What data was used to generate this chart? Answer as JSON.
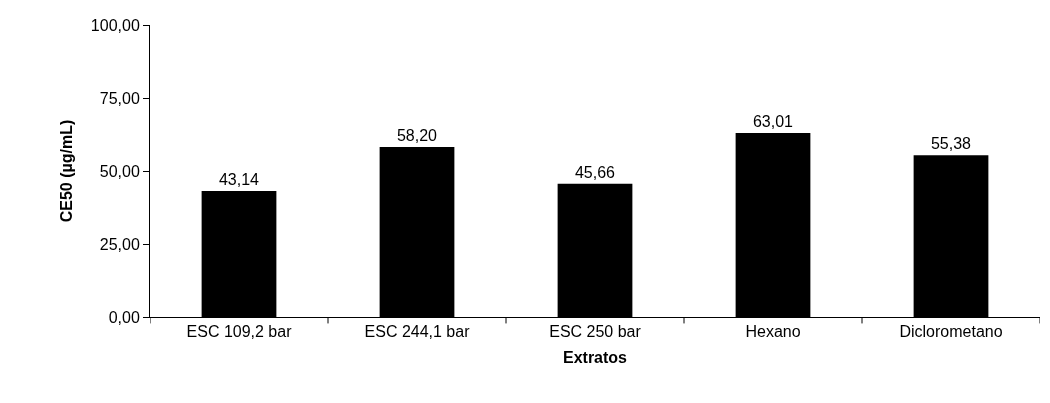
{
  "chart_data": {
    "type": "bar",
    "xlabel": "Extratos",
    "ylabel": "CE50 (µg/mL)",
    "categories": [
      "ESC 109,2 bar",
      "ESC 244,1 bar",
      "ESC 250 bar",
      "Hexano",
      "Diclorometano"
    ],
    "values": [
      43.14,
      58.2,
      45.66,
      63.01,
      55.38
    ],
    "value_labels": [
      "43,14",
      "58,20",
      "45,66",
      "63,01",
      "55,38"
    ],
    "color": "#000000",
    "ylim": [
      0,
      100
    ],
    "yticks": [
      {
        "value": 0,
        "label": "0,00"
      },
      {
        "value": 25,
        "label": "25,00"
      },
      {
        "value": 50,
        "label": "50,00"
      },
      {
        "value": 75,
        "label": "75,00"
      },
      {
        "value": 100,
        "label": "100,00"
      }
    ],
    "grid": false
  }
}
